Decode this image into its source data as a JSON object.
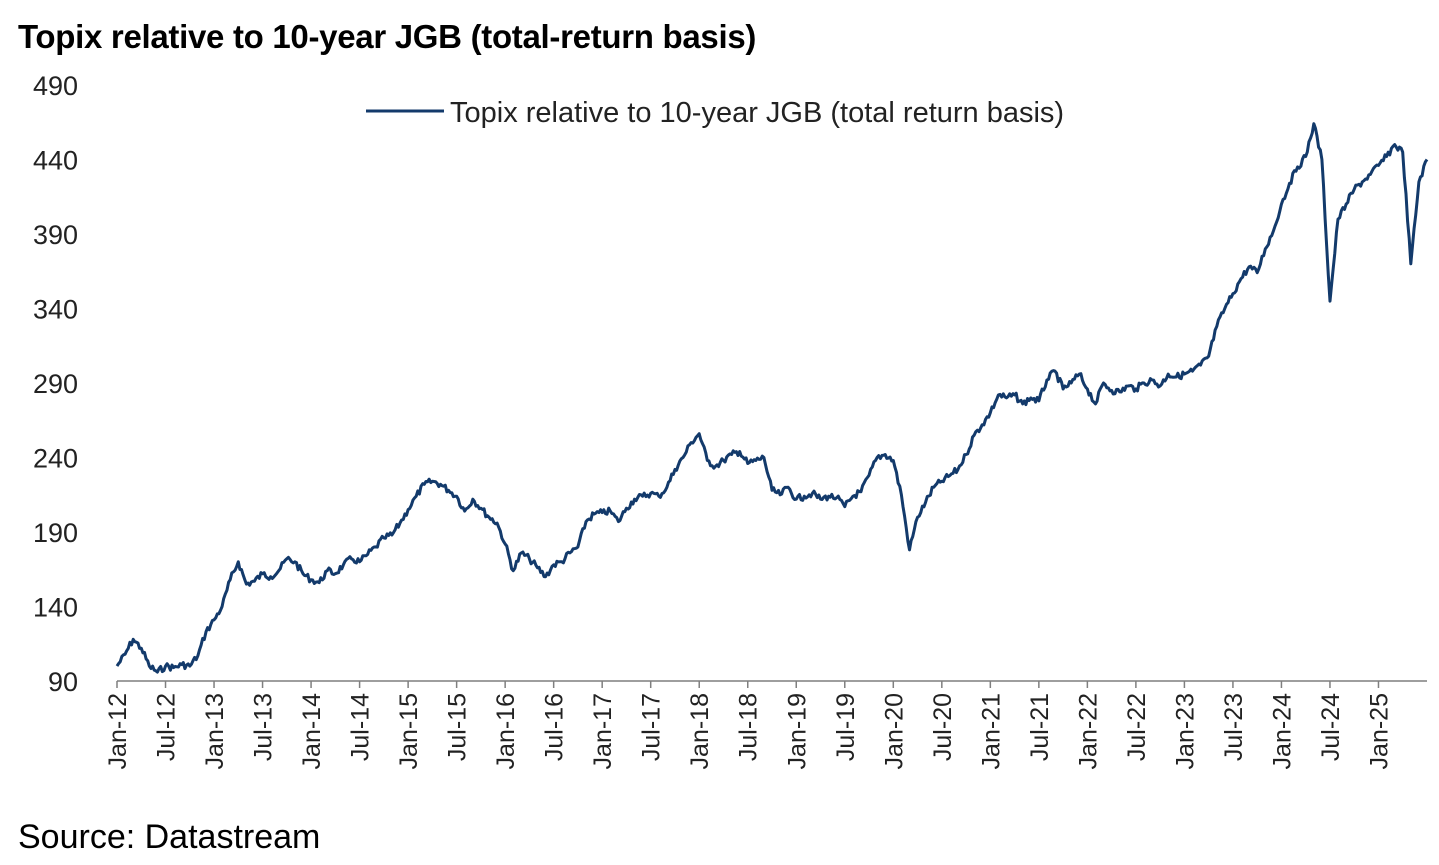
{
  "title": "Topix relative to 10-year JGB (total-return basis)",
  "source": "Source: Datastream",
  "colors": {
    "series": "#133a6b",
    "axis": "#7f7f7f"
  },
  "chart_data": {
    "type": "line",
    "title": "Topix relative to 10-year JGB (total-return basis)",
    "xlabel": "",
    "ylabel": "",
    "ylim": [
      90,
      490
    ],
    "yticks": [
      90,
      140,
      190,
      240,
      290,
      340,
      390,
      440,
      490
    ],
    "xlim": [
      "2012-01",
      "2025-07"
    ],
    "xticks": [
      "Jan-12",
      "Jul-12",
      "Jan-13",
      "Jul-13",
      "Jan-14",
      "Jul-14",
      "Jan-15",
      "Jul-15",
      "Jan-16",
      "Jul-16",
      "Jan-17",
      "Jul-17",
      "Jan-18",
      "Jul-18",
      "Jan-19",
      "Jul-19",
      "Jan-20",
      "Jul-20",
      "Jan-21",
      "Jul-21",
      "Jan-22",
      "Jul-22",
      "Jan-23",
      "Jul-23",
      "Jan-24",
      "Jul-24",
      "Jan-25"
    ],
    "grid": false,
    "legend_position": "top",
    "series": [
      {
        "name": "Topix relative to 10-year JGB (total return basis)",
        "x": [
          "2012-01",
          "2012-02",
          "2012-03",
          "2012-04",
          "2012-05",
          "2012-06",
          "2012-07",
          "2012-08",
          "2012-09",
          "2012-10",
          "2012-11",
          "2012-12",
          "2013-01",
          "2013-02",
          "2013-03",
          "2013-04",
          "2013-05",
          "2013-06",
          "2013-07",
          "2013-08",
          "2013-09",
          "2013-10",
          "2013-11",
          "2013-12",
          "2014-01",
          "2014-02",
          "2014-03",
          "2014-04",
          "2014-05",
          "2014-06",
          "2014-07",
          "2014-08",
          "2014-09",
          "2014-10",
          "2014-11",
          "2014-12",
          "2015-01",
          "2015-02",
          "2015-03",
          "2015-04",
          "2015-05",
          "2015-06",
          "2015-07",
          "2015-08",
          "2015-09",
          "2015-10",
          "2015-11",
          "2015-12",
          "2016-01",
          "2016-02",
          "2016-03",
          "2016-04",
          "2016-05",
          "2016-06",
          "2016-07",
          "2016-08",
          "2016-09",
          "2016-10",
          "2016-11",
          "2016-12",
          "2017-01",
          "2017-02",
          "2017-03",
          "2017-04",
          "2017-05",
          "2017-06",
          "2017-07",
          "2017-08",
          "2017-09",
          "2017-10",
          "2017-11",
          "2017-12",
          "2018-01",
          "2018-02",
          "2018-03",
          "2018-04",
          "2018-05",
          "2018-06",
          "2018-07",
          "2018-08",
          "2018-09",
          "2018-10",
          "2018-11",
          "2018-12",
          "2019-01",
          "2019-02",
          "2019-03",
          "2019-04",
          "2019-05",
          "2019-06",
          "2019-07",
          "2019-08",
          "2019-09",
          "2019-10",
          "2019-11",
          "2019-12",
          "2020-01",
          "2020-02",
          "2020-03",
          "2020-04",
          "2020-05",
          "2020-06",
          "2020-07",
          "2020-08",
          "2020-09",
          "2020-10",
          "2020-11",
          "2020-12",
          "2021-01",
          "2021-02",
          "2021-03",
          "2021-04",
          "2021-05",
          "2021-06",
          "2021-07",
          "2021-08",
          "2021-09",
          "2021-10",
          "2021-11",
          "2021-12",
          "2022-01",
          "2022-02",
          "2022-03",
          "2022-04",
          "2022-05",
          "2022-06",
          "2022-07",
          "2022-08",
          "2022-09",
          "2022-10",
          "2022-11",
          "2022-12",
          "2023-01",
          "2023-02",
          "2023-03",
          "2023-04",
          "2023-05",
          "2023-06",
          "2023-07",
          "2023-08",
          "2023-09",
          "2023-10",
          "2023-11",
          "2023-12",
          "2024-01",
          "2024-02",
          "2024-03",
          "2024-04",
          "2024-05",
          "2024-06",
          "2024-07",
          "2024-08",
          "2024-09",
          "2024-10",
          "2024-11",
          "2024-12",
          "2025-01",
          "2025-02",
          "2025-03",
          "2025-04",
          "2025-05",
          "2025-06",
          "2025-07"
        ],
        "values": [
          100,
          108,
          118,
          112,
          100,
          96,
          100,
          99,
          101,
          100,
          107,
          123,
          131,
          140,
          158,
          170,
          155,
          157,
          162,
          160,
          164,
          172,
          170,
          162,
          158,
          156,
          164,
          162,
          168,
          172,
          170,
          175,
          180,
          186,
          188,
          196,
          205,
          214,
          222,
          224,
          222,
          218,
          214,
          204,
          212,
          206,
          200,
          196,
          182,
          164,
          176,
          172,
          166,
          160,
          168,
          170,
          176,
          180,
          197,
          202,
          203,
          204,
          197,
          206,
          212,
          214,
          216,
          214,
          220,
          232,
          240,
          250,
          256,
          238,
          234,
          238,
          242,
          244,
          236,
          238,
          240,
          218,
          215,
          220,
          212,
          214,
          216,
          212,
          214,
          213,
          207,
          214,
          217,
          228,
          240,
          242,
          238,
          215,
          178,
          200,
          210,
          220,
          224,
          228,
          232,
          242,
          255,
          262,
          270,
          282,
          280,
          282,
          276,
          280,
          278,
          292,
          298,
          286,
          290,
          296,
          286,
          276,
          290,
          285,
          284,
          288,
          286,
          290,
          292,
          288,
          296,
          294,
          296,
          298,
          302,
          308,
          328,
          340,
          350,
          360,
          368,
          364,
          380,
          392,
          410,
          424,
          435,
          442,
          464,
          440,
          345,
          400,
          410,
          420,
          425,
          430,
          436,
          442,
          450,
          445,
          370,
          425,
          440
        ]
      }
    ]
  }
}
